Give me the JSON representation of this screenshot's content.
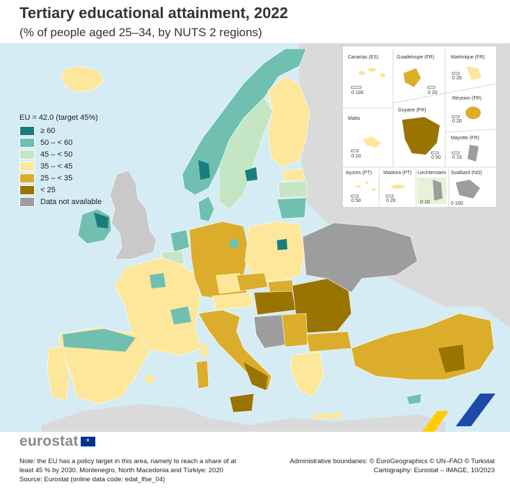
{
  "header": {
    "title": "Tertiary educational attainment, 2022",
    "subtitle": "(% of people aged 25–34, by NUTS 2 regions)"
  },
  "legend": {
    "title": "EU = 42.0 (target 45%)",
    "items": [
      {
        "label": "≥ 60",
        "color": "#1a7d7d"
      },
      {
        "label": "50 – < 60",
        "color": "#6fc0b0"
      },
      {
        "label": "45 – < 50",
        "color": "#c5e6c4"
      },
      {
        "label": "35 – < 45",
        "color": "#fce79a"
      },
      {
        "label": "25 – < 35",
        "color": "#dcad2b"
      },
      {
        "label": "< 25",
        "color": "#9a7400"
      },
      {
        "label": "Data not available",
        "color": "#9d9d9d"
      }
    ]
  },
  "insets": [
    {
      "name": "Canarias (ES)",
      "scale": "0   100"
    },
    {
      "name": "Guadeloupe (FR)",
      "scale": "0   20"
    },
    {
      "name": "Martinique (FR)",
      "scale": "0   20"
    },
    {
      "name": "Réunion (FR)",
      "scale": "0   20"
    },
    {
      "name": "Malta",
      "scale": "0   10"
    },
    {
      "name": "Guyane (FR)",
      "scale": "0   50"
    },
    {
      "name": "Mayotte (FR)",
      "scale": "0   15"
    },
    {
      "name": "Açores (PT)",
      "scale": "0   50"
    },
    {
      "name": "Madeira (PT)",
      "scale": "0   20"
    },
    {
      "name": "Liechtenstein",
      "scale": "0   10"
    },
    {
      "name": "Svalbard (NO)",
      "scale": "0  100"
    }
  ],
  "logo": {
    "text": "eurostat"
  },
  "footer": {
    "note_lines": [
      "Note: the EU has a policy target in this area, namely to reach a share of at",
      "least 45 % by 2030. Montenegro, North Macedonia and Türkiye: 2020",
      "Source: Eurostat (online data code: edat_lfse_04)"
    ],
    "credit_lines": [
      "Administrative boundaries: © EuroGeographics © UN–FAO © Turkstat",
      "Cartography: Eurostat – IMAGE, 10/2023"
    ]
  },
  "colors": {
    "sea": "#d5ecf4",
    "non_eu_land": "#dadada",
    "border": "#ffffff",
    "country_border": "#333333"
  }
}
